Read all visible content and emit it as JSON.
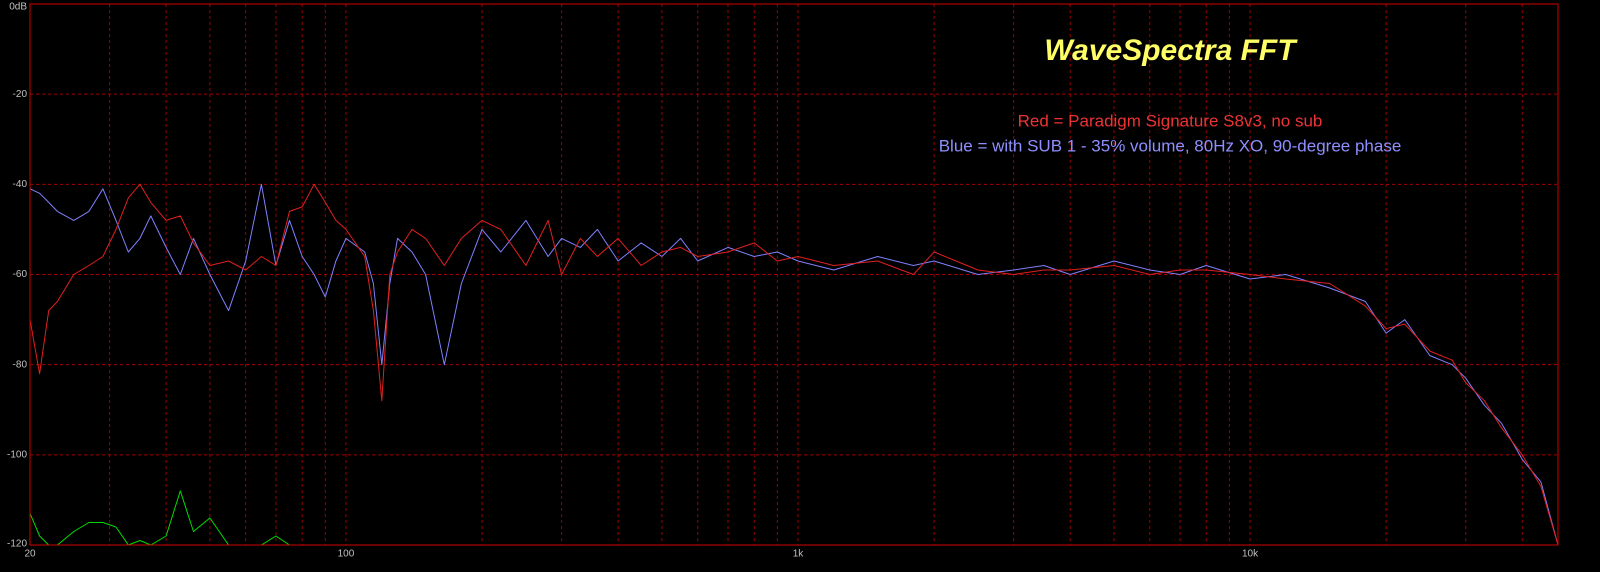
{
  "chart_data": {
    "type": "line",
    "title": "WaveSpectra FFT",
    "annotations": [
      {
        "text": "Red = Paradigm Signature S8v3, no sub",
        "color": "#ee3333"
      },
      {
        "text": "Blue = with SUB 1 - 35% volume, 80Hz XO, 90-degree phase",
        "color": "#8f8fff"
      }
    ],
    "title_color": "#ffff66",
    "log_x": true,
    "grid": true,
    "xlim": [
      20,
      48000
    ],
    "ylim": [
      -120,
      0
    ],
    "xticks": [
      20,
      100,
      {
        "value": 1000,
        "label": "1k"
      },
      {
        "value": 10000,
        "label": "10k"
      }
    ],
    "xminorticks": [
      30,
      40,
      50,
      60,
      70,
      80,
      90,
      200,
      300,
      400,
      500,
      600,
      700,
      800,
      900,
      2000,
      3000,
      4000,
      5000,
      6000,
      7000,
      8000,
      9000,
      20000,
      30000,
      40000
    ],
    "yticks": [
      {
        "value": 0,
        "label": "0dB"
      },
      -20,
      -40,
      -60,
      -80,
      -100,
      -120
    ],
    "x": [
      20,
      21,
      22,
      23,
      25,
      27,
      29,
      31,
      33,
      35,
      37,
      40,
      43,
      46,
      50,
      55,
      60,
      65,
      70,
      75,
      80,
      85,
      90,
      95,
      100,
      110,
      115,
      120,
      125,
      130,
      140,
      150,
      165,
      180,
      200,
      220,
      250,
      280,
      300,
      330,
      360,
      400,
      450,
      500,
      550,
      600,
      700,
      800,
      900,
      1000,
      1200,
      1500,
      1800,
      2000,
      2500,
      3000,
      3500,
      4000,
      5000,
      6000,
      7000,
      8000,
      10000,
      12000,
      15000,
      18000,
      20000,
      22000,
      25000,
      28000,
      30000,
      33000,
      36000,
      40000,
      44000,
      48000
    ],
    "series": [
      {
        "color": "#8080ff",
        "values": [
          -41,
          -42,
          -44,
          -46,
          -48,
          -46,
          -41,
          -48,
          -55,
          -52,
          -47,
          -54,
          -60,
          -52,
          -60,
          -68,
          -57,
          -40,
          -58,
          -48,
          -56,
          -60,
          -65,
          -57,
          -52,
          -55,
          -62,
          -80,
          -62,
          -52,
          -55,
          -60,
          -80,
          -62,
          -50,
          -55,
          -48,
          -56,
          -52,
          -54,
          -50,
          -57,
          -53,
          -56,
          -52,
          -57,
          -54,
          -56,
          -55,
          -57,
          -59,
          -56,
          -58,
          -57,
          -60,
          -59,
          -58,
          -60,
          -57,
          -59,
          -60,
          -58,
          -61,
          -60,
          -63,
          -66,
          -73,
          -70,
          -78,
          -80,
          -83,
          -89,
          -93,
          -101,
          -106,
          -120
        ]
      },
      {
        "color": "#e02020",
        "values": [
          -70,
          -82,
          -68,
          -66,
          -60,
          -58,
          -56,
          -50,
          -43,
          -40,
          -44,
          -48,
          -47,
          -53,
          -58,
          -57,
          -59,
          -56,
          -58,
          -46,
          -45,
          -40,
          -44,
          -48,
          -50,
          -56,
          -68,
          -88,
          -60,
          -55,
          -50,
          -52,
          -58,
          -52,
          -48,
          -50,
          -58,
          -48,
          -60,
          -52,
          -56,
          -52,
          -58,
          -55,
          -54,
          -56,
          -55,
          -53,
          -57,
          -56,
          -58,
          -57,
          -60,
          -55,
          -59,
          -60,
          -59,
          -59,
          -58,
          -60,
          -59,
          -59,
          -60,
          -61,
          -62,
          -67,
          -72,
          -71,
          -77,
          -79,
          -84,
          -88,
          -94,
          -100,
          -107,
          -120
        ]
      },
      {
        "color": "#00dd00",
        "values": [
          -113,
          -118,
          -120,
          -120,
          -117,
          -115,
          -115,
          -116,
          -120,
          -119,
          -120,
          -118,
          -108,
          -117,
          -114,
          -120,
          -120,
          -120,
          -118,
          -120,
          -120,
          null,
          null,
          null,
          null,
          null,
          null,
          null,
          null,
          null,
          null,
          null,
          null,
          null,
          null,
          null,
          null,
          null,
          null,
          null,
          null,
          null,
          null,
          null,
          null,
          null,
          null,
          null,
          null,
          null,
          null,
          null,
          null,
          null,
          null,
          null,
          null,
          null,
          null,
          null,
          null,
          null,
          null,
          null,
          null,
          null,
          null,
          null,
          null,
          null,
          null,
          null,
          null,
          null,
          null,
          null
        ]
      }
    ]
  }
}
